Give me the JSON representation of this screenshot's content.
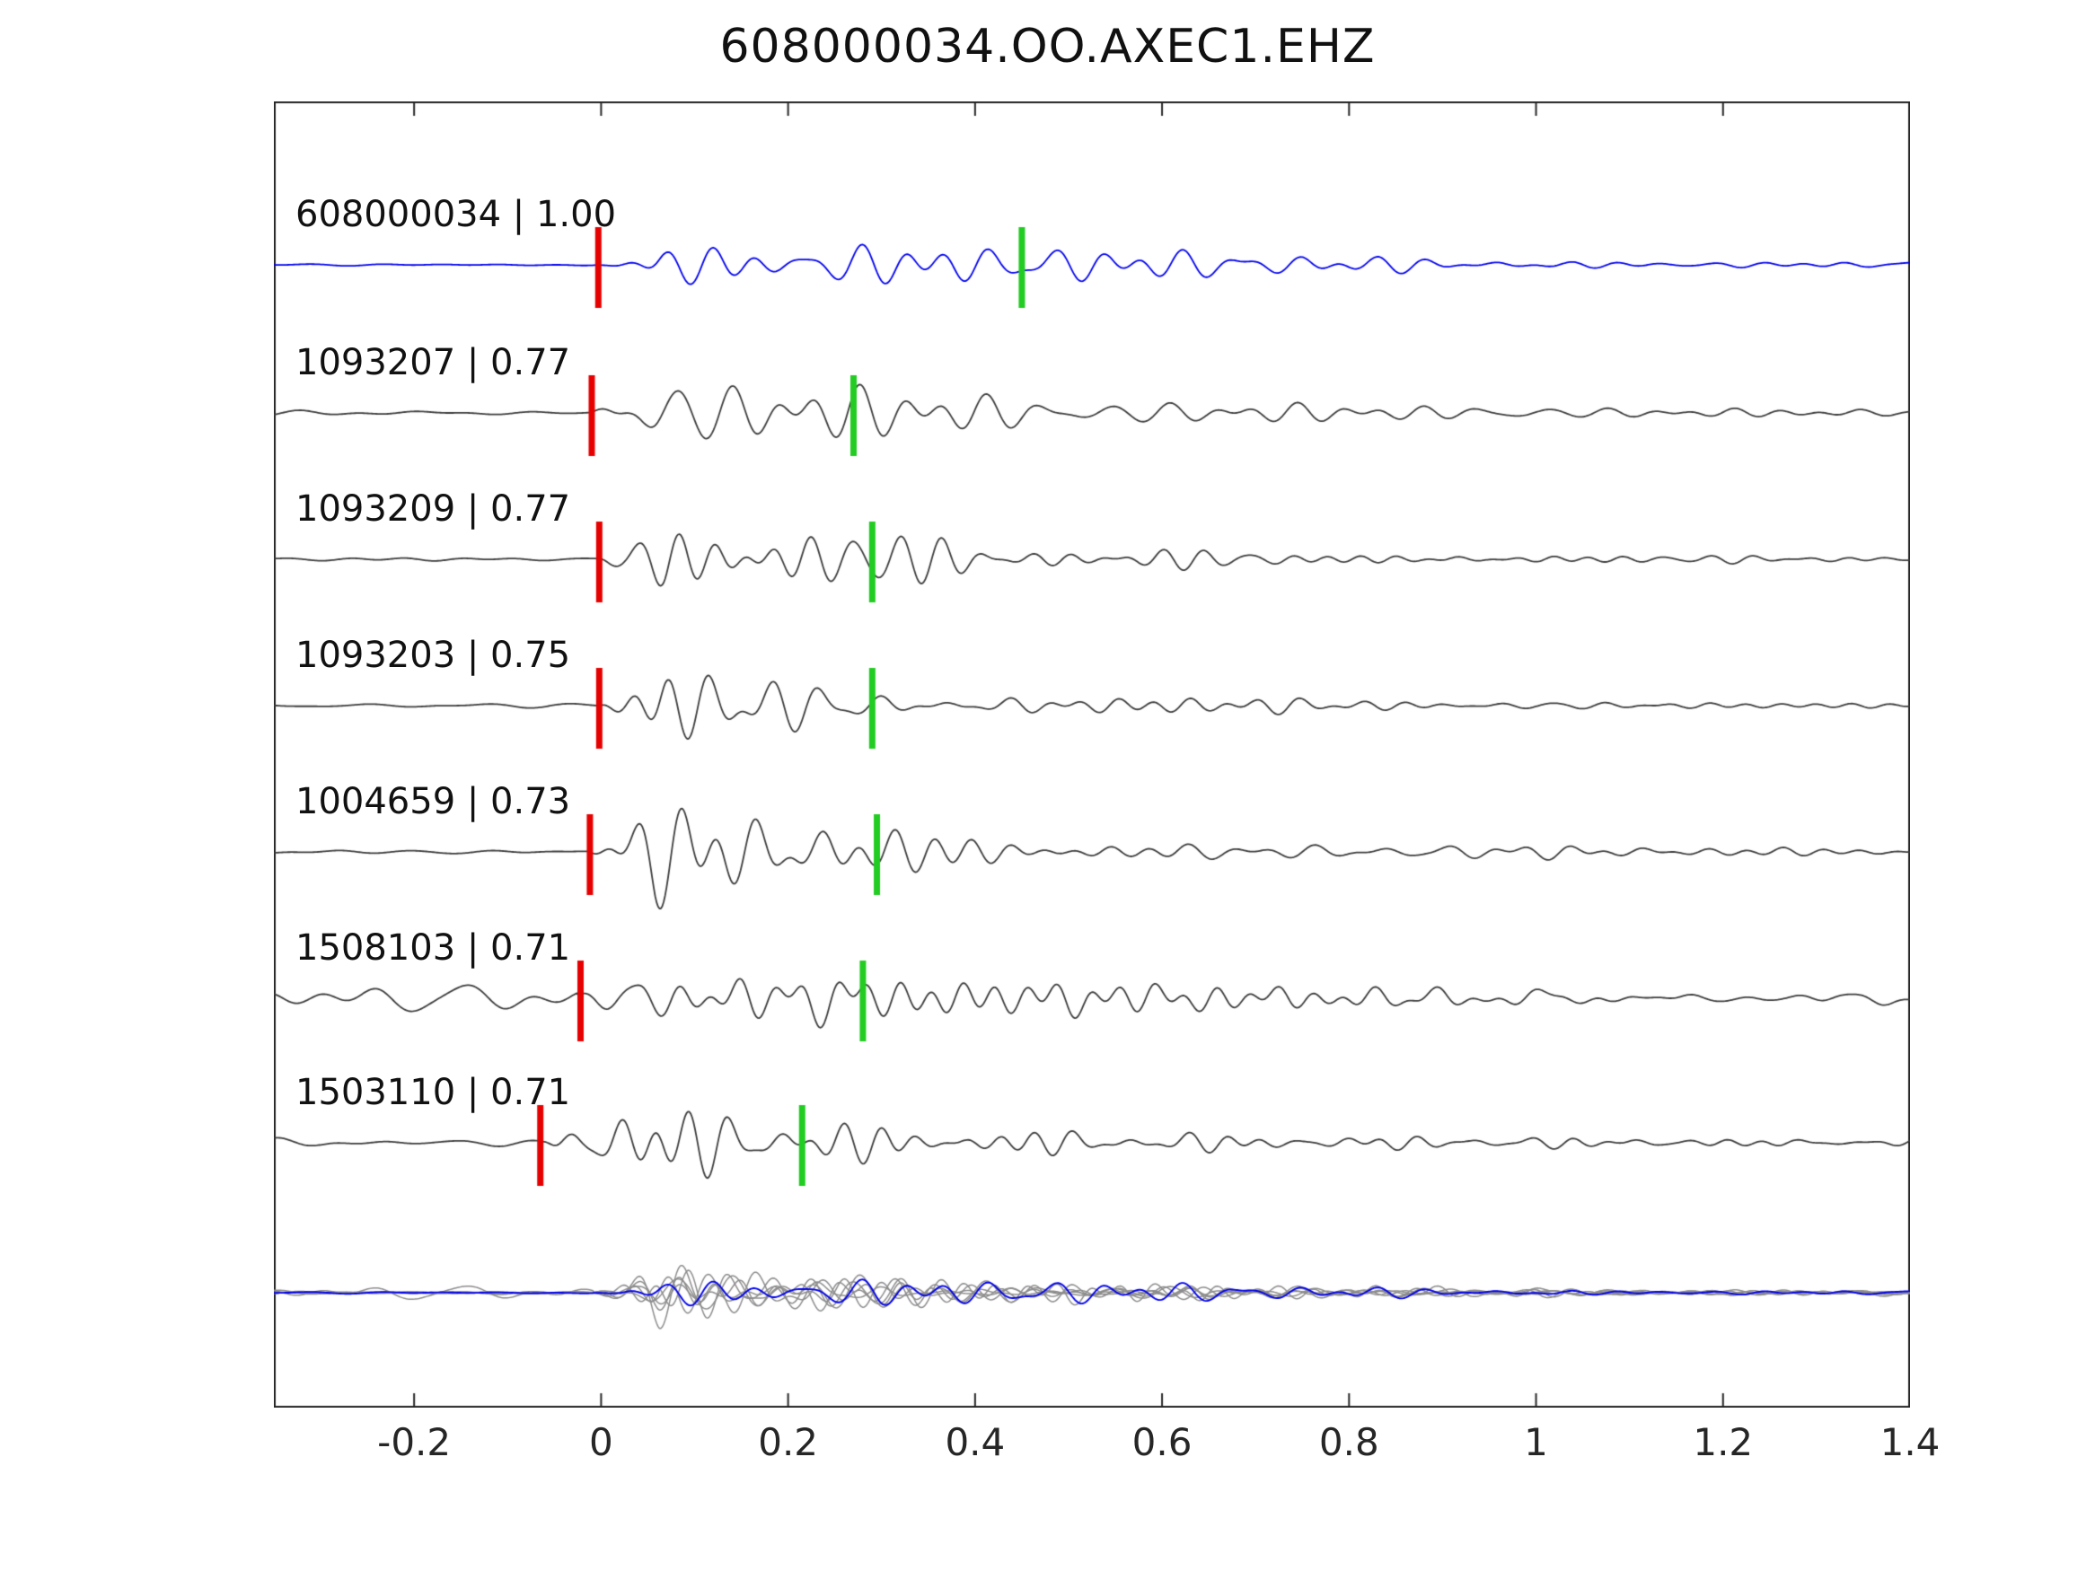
{
  "title": "608000034.OO.AXEC1.EHZ",
  "chart_data": {
    "type": "line",
    "title": "608000034.OO.AXEC1.EHZ",
    "subtitle": "",
    "xlabel": "",
    "ylabel": "",
    "xlim": [
      -0.35,
      1.4
    ],
    "x_ticks": [
      -0.2,
      0,
      0.2,
      0.4,
      0.6,
      0.8,
      1,
      1.2,
      1.4
    ],
    "x_tick_labels": [
      "-0.2",
      "0",
      "0.2",
      "0.4",
      "0.6",
      "0.8",
      "1",
      "1.2",
      "1.4"
    ],
    "grid": false,
    "legend": "none",
    "colors": {
      "reference_trace": "#0000ee",
      "match_trace": "#3c3c3c",
      "stack_trace": "#8c8c8c",
      "pick_marker": "#e60000",
      "secondary_marker": "#22cc22",
      "axis": "#262626",
      "text": "#111111"
    },
    "traces": [
      {
        "label": "608000034 | 1.00",
        "event_id": "608000034",
        "correlation": 1.0,
        "color": "reference",
        "red_pick_time": -0.003,
        "green_marker_time": 0.45
      },
      {
        "label": "1093207 | 0.77",
        "event_id": "1093207",
        "correlation": 0.77,
        "color": "match",
        "red_pick_time": -0.01,
        "green_marker_time": 0.27
      },
      {
        "label": "1093209 | 0.77",
        "event_id": "1093209",
        "correlation": 0.77,
        "color": "match",
        "red_pick_time": -0.002,
        "green_marker_time": 0.29
      },
      {
        "label": "1093203 | 0.75",
        "event_id": "1093203",
        "correlation": 0.75,
        "color": "match",
        "red_pick_time": -0.002,
        "green_marker_time": 0.29
      },
      {
        "label": "1004659 | 0.73",
        "event_id": "1004659",
        "correlation": 0.73,
        "color": "match",
        "red_pick_time": -0.012,
        "green_marker_time": 0.295
      },
      {
        "label": "1508103 | 0.71",
        "event_id": "1508103",
        "correlation": 0.71,
        "color": "match",
        "red_pick_time": -0.022,
        "green_marker_time": 0.28
      },
      {
        "label": "1503110 | 0.71",
        "event_id": "1503110",
        "correlation": 0.71,
        "color": "match",
        "red_pick_time": -0.065,
        "green_marker_time": 0.215
      }
    ],
    "stack_row": {
      "label": "",
      "note": "overlay of all matched traces (gray) with reference trace (blue) aligned at pick time"
    }
  }
}
